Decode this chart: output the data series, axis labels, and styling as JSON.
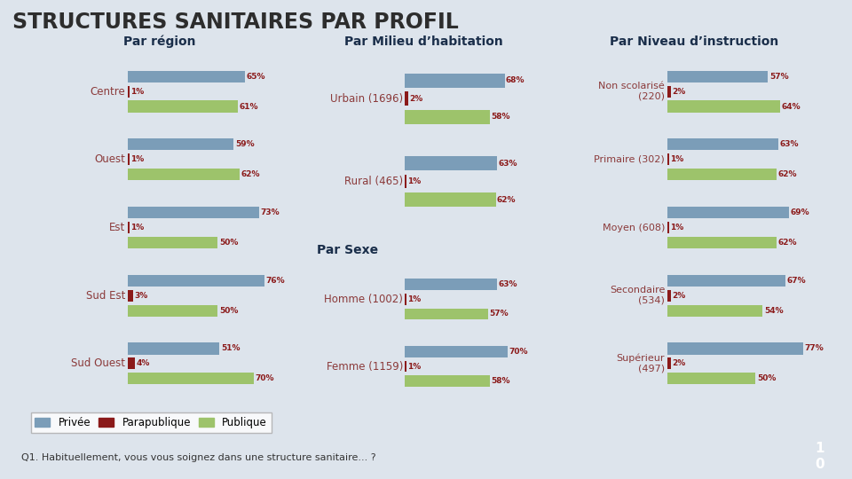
{
  "title": "STRUCTURES SANITAIRES PAR PROFIL",
  "title_color": "#2d2d2d",
  "background_color": "#dde4ec",
  "panel_bg": "#f0f0f0",
  "bar_colors": {
    "privee": "#7b9db8",
    "parapublique": "#8b1a1a",
    "publique": "#9dc36b"
  },
  "label_color": "#8b1a1a",
  "section_title_color": "#1a2e4a",
  "category_label_color": "#8b3a3a",
  "col1_title": "Par région",
  "col2_title": "Par Milieu d’habitation",
  "col3_title": "Par Niveau d’instruction",
  "par_sexe_title": "Par Sexe",
  "col1_groups": [
    {
      "label": "Centre",
      "privee": 65,
      "parapublique": 1,
      "publique": 61
    },
    {
      "label": "Ouest",
      "privee": 59,
      "parapublique": 1,
      "publique": 62
    },
    {
      "label": "Est",
      "privee": 73,
      "parapublique": 1,
      "publique": 50
    },
    {
      "label": "Sud Est",
      "privee": 76,
      "parapublique": 3,
      "publique": 50
    },
    {
      "label": "Sud Ouest",
      "privee": 51,
      "parapublique": 4,
      "publique": 70
    }
  ],
  "col2_milieu": [
    {
      "label": "Urbain (1696)",
      "privee": 68,
      "parapublique": 2,
      "publique": 58
    },
    {
      "label": "Rural (465)",
      "privee": 63,
      "parapublique": 1,
      "publique": 62
    }
  ],
  "col2_sexe": [
    {
      "label": "Homme (1002)",
      "privee": 63,
      "parapublique": 1,
      "publique": 57
    },
    {
      "label": "Femme (1159)",
      "privee": 70,
      "parapublique": 1,
      "publique": 58
    }
  ],
  "col3_groups": [
    {
      "label": "Non scolarisé\n(220)",
      "privee": 57,
      "parapublique": 2,
      "publique": 64
    },
    {
      "label": "Primaire (302)",
      "privee": 63,
      "parapublique": 1,
      "publique": 62
    },
    {
      "label": "Moyen (608)",
      "privee": 69,
      "parapublique": 1,
      "publique": 62
    },
    {
      "label": "Secondaire\n(534)",
      "privee": 67,
      "parapublique": 2,
      "publique": 54
    },
    {
      "label": "Supérieur\n(497)",
      "privee": 77,
      "parapublique": 2,
      "publique": 50
    }
  ],
  "legend_labels": [
    "Privée",
    "Parapublique",
    "Publique"
  ],
  "footer_text": "Q1. Habituellement, vous vous soignez dans une structure sanitaire... ?",
  "xlim": [
    0,
    90
  ]
}
